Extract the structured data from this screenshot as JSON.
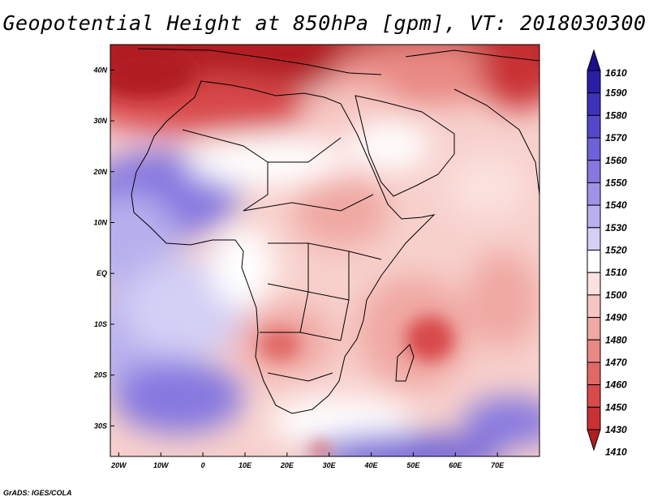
{
  "title": "Geopotential Height at 850hPa [gpm], VT: 2018030300",
  "credit": "GrADS: IGES/COLA",
  "axes": {
    "lat_ticks": [
      {
        "label": "40N",
        "value": 40
      },
      {
        "label": "30N",
        "value": 30
      },
      {
        "label": "20N",
        "value": 20
      },
      {
        "label": "10N",
        "value": 10
      },
      {
        "label": "EQ",
        "value": 0
      },
      {
        "label": "10S",
        "value": -10
      },
      {
        "label": "20S",
        "value": -20
      },
      {
        "label": "30S",
        "value": -30
      }
    ],
    "lon_ticks": [
      {
        "label": "20W",
        "value": -20
      },
      {
        "label": "10W",
        "value": -10
      },
      {
        "label": "0",
        "value": 0
      },
      {
        "label": "10E",
        "value": 10
      },
      {
        "label": "20E",
        "value": 20
      },
      {
        "label": "30E",
        "value": 30
      },
      {
        "label": "40E",
        "value": 40
      },
      {
        "label": "50E",
        "value": 50
      },
      {
        "label": "60E",
        "value": 60
      },
      {
        "label": "70E",
        "value": 70
      }
    ],
    "lon_range": [
      -22,
      80
    ],
    "lat_range": [
      -36,
      45
    ]
  },
  "colorbar": {
    "labels": [
      "1610",
      "1590",
      "1580",
      "1570",
      "1560",
      "1550",
      "1540",
      "1530",
      "1520",
      "1510",
      "1500",
      "1490",
      "1480",
      "1470",
      "1460",
      "1450",
      "1430",
      "1410"
    ],
    "colors": [
      "#1c0f8c",
      "#2a1ea6",
      "#3c32bd",
      "#5547cd",
      "#6e60d8",
      "#8678e0",
      "#9f93e7",
      "#b8b0ee",
      "#d3cff5",
      "#ffffff",
      "#fbe1df",
      "#f6c5c1",
      "#f0a8a3",
      "#e98984",
      "#e06966",
      "#d84a4b",
      "#c93134",
      "#b01e22"
    ]
  }
}
